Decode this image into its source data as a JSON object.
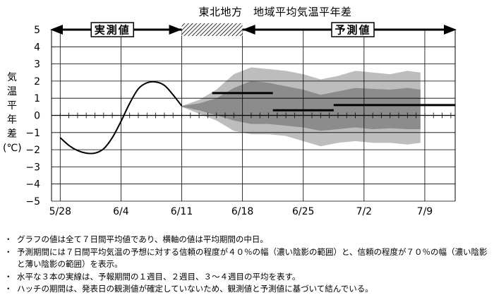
{
  "chart_data": {
    "type": "line",
    "title": "東北地方　地域平均気温平年差",
    "ylabel": "気温平年差(℃)",
    "ylabel_chars": [
      "気",
      "温",
      "平",
      "年",
      "差",
      "(℃)"
    ],
    "ylim": [
      -5,
      5
    ],
    "yticks": [
      "5",
      "4",
      "3",
      "2",
      "1",
      "0",
      "−1",
      "−2",
      "−3",
      "−4",
      "−5"
    ],
    "x_tick_labels": [
      "5/28",
      "6/4",
      "6/11",
      "6/18",
      "6/25",
      "7/2",
      "7/9"
    ],
    "observed_label": "実測値",
    "forecast_label": "予測値",
    "observed": {
      "x": [
        0,
        1,
        2,
        3,
        4,
        5,
        6,
        7,
        8,
        9,
        10,
        11,
        12,
        13,
        14
      ],
      "y": [
        -1.3,
        -1.75,
        -2.05,
        -2.2,
        -2.2,
        -1.95,
        -1.3,
        -0.35,
        0.7,
        1.55,
        1.9,
        1.95,
        1.75,
        1.2,
        0.55
      ]
    },
    "hatch_period": [
      14,
      21
    ],
    "band_70": {
      "x": [
        14,
        16,
        18,
        20,
        22,
        24,
        26,
        28,
        30,
        32,
        34,
        36,
        38,
        40,
        41.5
      ],
      "upper": [
        0.55,
        0.9,
        1.5,
        2.4,
        2.8,
        2.7,
        2.6,
        2.4,
        2.1,
        2.3,
        2.6,
        2.5,
        2.4,
        2.6,
        2.5
      ],
      "lower": [
        0.5,
        0.1,
        -0.3,
        -0.9,
        -1.1,
        -1.1,
        -1.2,
        -1.5,
        -1.8,
        -1.6,
        -1.5,
        -1.6,
        -1.6,
        -1.7,
        -1.6
      ]
    },
    "band_40": {
      "x": [
        14,
        16,
        18,
        20,
        22,
        24,
        26,
        28,
        30,
        32,
        34,
        36,
        38,
        40,
        41.5
      ],
      "upper": [
        0.55,
        0.7,
        1.0,
        1.6,
        2.0,
        1.9,
        1.7,
        1.5,
        1.2,
        1.4,
        1.6,
        1.55,
        1.5,
        1.6,
        1.5
      ],
      "lower": [
        0.5,
        0.3,
        0.0,
        -0.3,
        -0.5,
        -0.5,
        -0.6,
        -0.7,
        -0.9,
        -0.8,
        -0.7,
        -0.8,
        -0.75,
        -0.8,
        -0.8
      ]
    },
    "weekly_means": [
      {
        "week": "1週目",
        "x0": 17.5,
        "x1": 24.5,
        "y": 1.3
      },
      {
        "week": "2週目",
        "x0": 24.5,
        "x1": 31.5,
        "y": 0.3
      },
      {
        "week": "3〜4週目",
        "x0": 31.5,
        "x1": 45.5,
        "y": 0.6
      }
    ]
  },
  "notes": [
    "グラフの値は全て７日間平均値であり、横軸の値は平均期間の中日。",
    "予測期間には７日間平均気温の予想に対する信頼の程度が４０％の幅（濃い陰影の範囲）と、信頼の程度が７０％の幅（濃い陰影と薄い陰影の範囲）を表示。",
    "水平な３本の実線は、予報期間の１週目、２週目、３〜４週目の平均を表す。",
    "ハッチの期間は、発表日の観測値が確定していないため、観測値と予測値に基づいて結んでいる。"
  ],
  "bullet": "・",
  "colors": {
    "band70": "#bdbdbd",
    "band40": "#8c8c8c",
    "line": "#000000"
  }
}
